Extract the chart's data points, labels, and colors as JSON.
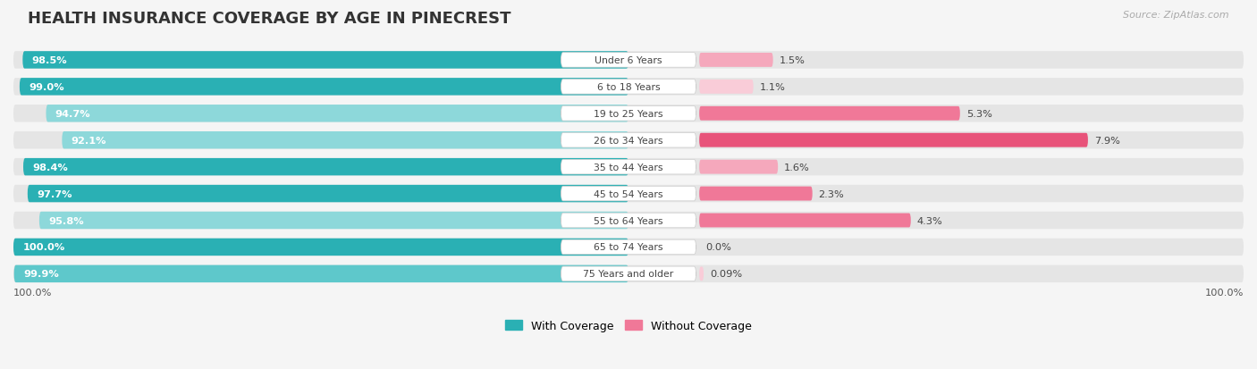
{
  "title": "HEALTH INSURANCE COVERAGE BY AGE IN PINECREST",
  "source": "Source: ZipAtlas.com",
  "categories": [
    "Under 6 Years",
    "6 to 18 Years",
    "19 to 25 Years",
    "26 to 34 Years",
    "35 to 44 Years",
    "45 to 54 Years",
    "55 to 64 Years",
    "65 to 74 Years",
    "75 Years and older"
  ],
  "with_coverage": [
    98.5,
    99.0,
    94.7,
    92.1,
    98.4,
    97.7,
    95.8,
    100.0,
    99.9
  ],
  "without_coverage": [
    1.5,
    1.1,
    5.3,
    7.9,
    1.6,
    2.3,
    4.3,
    0.0,
    0.09
  ],
  "with_coverage_labels": [
    "98.5%",
    "99.0%",
    "94.7%",
    "92.1%",
    "98.4%",
    "97.7%",
    "95.8%",
    "100.0%",
    "99.9%"
  ],
  "without_coverage_labels": [
    "1.5%",
    "1.1%",
    "5.3%",
    "7.9%",
    "1.6%",
    "2.3%",
    "4.3%",
    "0.0%",
    "0.09%"
  ],
  "color_with_dark": "#2ab0b4",
  "color_with_mid": "#5ec8cb",
  "color_with_light": "#8dd8da",
  "color_without_dark": "#e8537a",
  "color_without_mid": "#f07898",
  "color_without_light": "#f5a8bc",
  "color_without_vlight": "#f9ccd8",
  "bar_bg": "#e5e5e5",
  "background": "#f5f5f5",
  "title_color": "#333333",
  "label_color_white": "#ffffff",
  "label_color_dark": "#444444",
  "source_color": "#aaaaaa",
  "axis_label_color": "#555555",
  "legend_with_color": "#2ab0b4",
  "legend_without_color": "#f07898",
  "bottom_label": "100.0%",
  "without_colors_by_row": [
    "#f5a8bc",
    "#f9ccd8",
    "#f07898",
    "#e8537a",
    "#f5a8bc",
    "#f07898",
    "#f07898",
    "#f9ccd8",
    "#f9ccd8"
  ],
  "with_colors_by_row": [
    "#2ab0b4",
    "#2ab0b4",
    "#8dd8da",
    "#8dd8da",
    "#2ab0b4",
    "#2ab0b4",
    "#8dd8da",
    "#2ab0b4",
    "#5ec8cb"
  ]
}
